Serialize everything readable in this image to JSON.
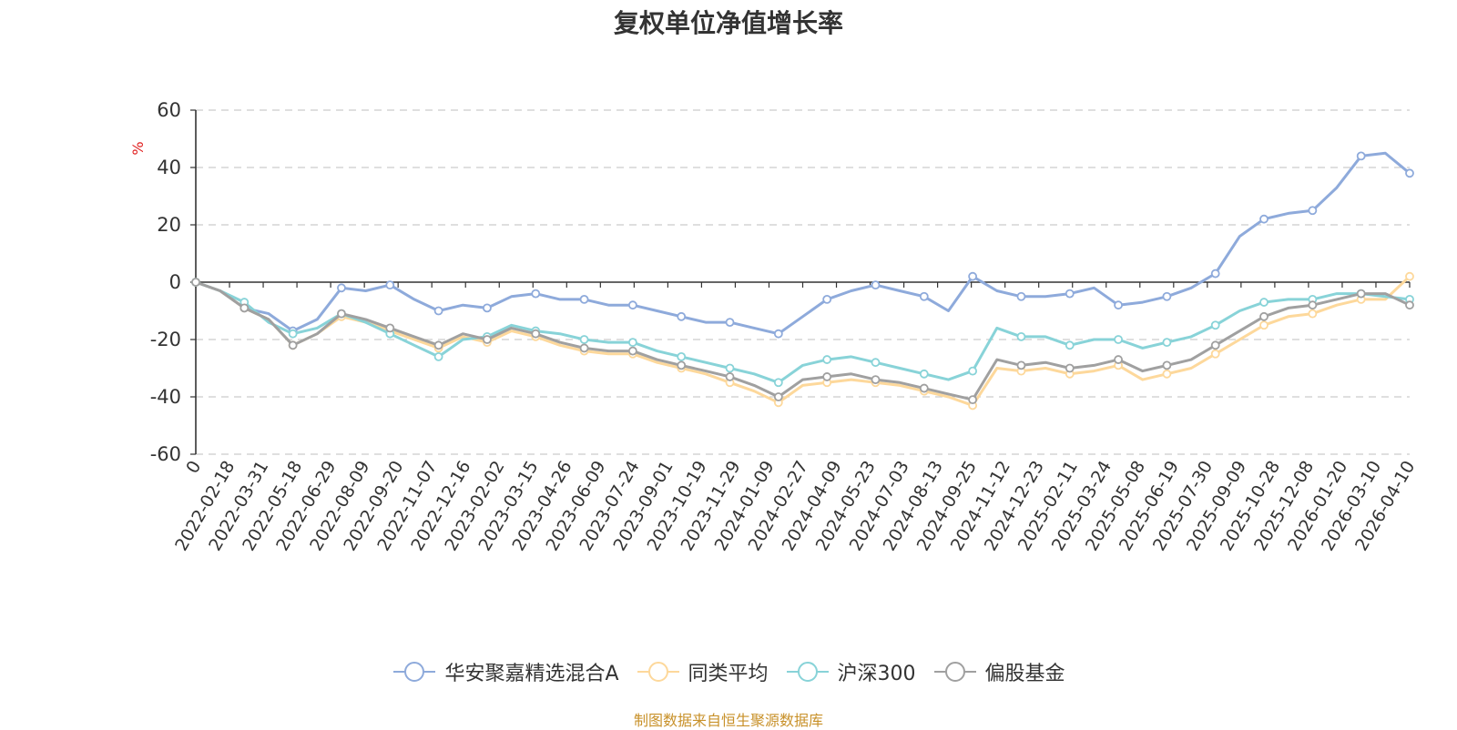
{
  "chart_data": {
    "type": "line",
    "title": "复权单位净值增长率",
    "ylabel": "%",
    "xlabel": "",
    "ylim": [
      -60,
      60
    ],
    "yticks": [
      60,
      40,
      20,
      0,
      -20,
      -40,
      -60
    ],
    "xticks": [
      "0",
      "2022-02-18",
      "2022-03-31",
      "2022-05-18",
      "2022-06-29",
      "2022-08-09",
      "2022-09-20",
      "2022-11-07",
      "2022-12-16",
      "2023-02-02",
      "2023-03-15",
      "2023-04-26",
      "2023-06-09",
      "2023-07-24",
      "2023-09-01",
      "2023-10-19",
      "2023-11-29",
      "2024-01-09",
      "2024-02-27",
      "2024-04-09",
      "2024-05-23",
      "2024-07-03",
      "2024-08-13",
      "2024-09-25",
      "2024-11-12",
      "2024-12-23",
      "2025-02-11",
      "2025-03-24",
      "2025-05-08",
      "2025-06-19",
      "2025-07-30",
      "2025-09-09",
      "2025-10-28",
      "2025-12-08",
      "2026-01-20",
      "2026-03-10",
      "2026-04-10"
    ],
    "grid": true,
    "legend_position": "bottom",
    "source": "制图数据来自恒生聚源数据库",
    "series": [
      {
        "name": "华安聚嘉精选混合A",
        "color": "#8eaadb",
        "values": [
          0,
          -3,
          -9,
          -11,
          -17,
          -13,
          -2,
          -3,
          -1,
          -6,
          -10,
          -8,
          -9,
          -5,
          -4,
          -6,
          -6,
          -8,
          -8,
          -10,
          -12,
          -14,
          -14,
          -16,
          -18,
          -12,
          -6,
          -3,
          -1,
          -3,
          -5,
          -10,
          2,
          -3,
          -5,
          -5,
          -4,
          -2,
          -8,
          -7,
          -5,
          -2,
          3,
          16,
          22,
          24,
          25,
          33,
          44,
          45,
          38
        ]
      },
      {
        "name": "同类平均",
        "color": "#fdd89b",
        "values": [
          0,
          -3,
          -9,
          -13,
          -22,
          -18,
          -12,
          -14,
          -17,
          -20,
          -23,
          -19,
          -21,
          -17,
          -19,
          -22,
          -24,
          -25,
          -25,
          -28,
          -30,
          -32,
          -35,
          -38,
          -42,
          -36,
          -35,
          -34,
          -35,
          -36,
          -38,
          -40,
          -43,
          -30,
          -31,
          -30,
          -32,
          -31,
          -29,
          -34,
          -32,
          -30,
          -25,
          -20,
          -15,
          -12,
          -11,
          -8,
          -6,
          -6,
          2
        ]
      },
      {
        "name": "沪深300",
        "color": "#88d3d8",
        "values": [
          0,
          -3,
          -7,
          -14,
          -18,
          -16,
          -11,
          -14,
          -18,
          -22,
          -26,
          -20,
          -19,
          -15,
          -17,
          -18,
          -20,
          -21,
          -21,
          -24,
          -26,
          -28,
          -30,
          -32,
          -35,
          -29,
          -27,
          -26,
          -28,
          -30,
          -32,
          -34,
          -31,
          -16,
          -19,
          -19,
          -22,
          -20,
          -20,
          -23,
          -21,
          -19,
          -15,
          -10,
          -7,
          -6,
          -6,
          -4,
          -4,
          -5,
          -6
        ]
      },
      {
        "name": "偏股基金",
        "color": "#a0a0a0",
        "values": [
          0,
          -3,
          -9,
          -13,
          -22,
          -18,
          -11,
          -13,
          -16,
          -19,
          -22,
          -18,
          -20,
          -16,
          -18,
          -21,
          -23,
          -24,
          -24,
          -27,
          -29,
          -31,
          -33,
          -36,
          -40,
          -34,
          -33,
          -32,
          -34,
          -35,
          -37,
          -39,
          -41,
          -27,
          -29,
          -28,
          -30,
          -29,
          -27,
          -31,
          -29,
          -27,
          -22,
          -17,
          -12,
          -9,
          -8,
          -6,
          -4,
          -4,
          -8
        ]
      }
    ]
  }
}
